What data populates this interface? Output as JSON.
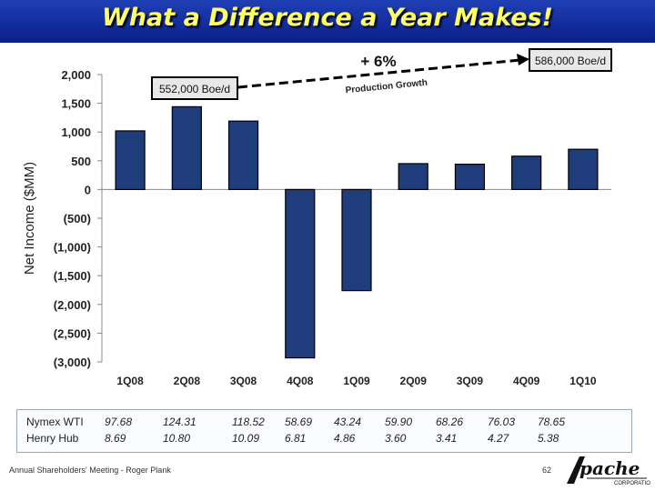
{
  "header": {
    "title": "What a Difference a Year Makes!"
  },
  "chart_data": {
    "type": "bar",
    "categories": [
      "1Q08",
      "2Q08",
      "3Q08",
      "4Q08",
      "1Q09",
      "2Q09",
      "3Q09",
      "4Q09",
      "1Q10"
    ],
    "values": [
      1020,
      1440,
      1190,
      -2930,
      -1760,
      450,
      440,
      580,
      700
    ],
    "ylabel": "Net Income ($MM)",
    "ylim": [
      -3000,
      2000
    ],
    "yticks": [
      2000,
      1500,
      1000,
      500,
      0,
      -500,
      -1000,
      -1500,
      -2000,
      -2500,
      -3000
    ],
    "ytick_labels": [
      "2,000",
      "1,500",
      "1,000",
      "500",
      "0",
      "(500)",
      "(1,000)",
      "(1,500)",
      "(2,000)",
      "(2,500)",
      "(3,000)"
    ],
    "bar_color": "#1f3d7a",
    "annotations": {
      "start_production": "552,000 Boe/d",
      "end_production": "586,000 Boe/d",
      "growth_pct": "+ 6%",
      "growth_label": "Production Growth"
    }
  },
  "prices": {
    "rows": [
      {
        "label": "Nymex WTI",
        "values": [
          "97.68",
          "124.31",
          "118.52",
          "58.69",
          "43.24",
          "59.90",
          "68.26",
          "76.03",
          "78.65"
        ]
      },
      {
        "label": "Henry Hub",
        "values": [
          "8.69",
          "10.80",
          "10.09",
          "6.81",
          "4.86",
          "3.60",
          "3.41",
          "4.27",
          "5.38"
        ]
      }
    ]
  },
  "footer": {
    "text": "Annual Shareholders' Meeting - Roger Plank",
    "page": "62"
  },
  "logo": {
    "name": "Apache",
    "sub": "CORPORATION"
  }
}
